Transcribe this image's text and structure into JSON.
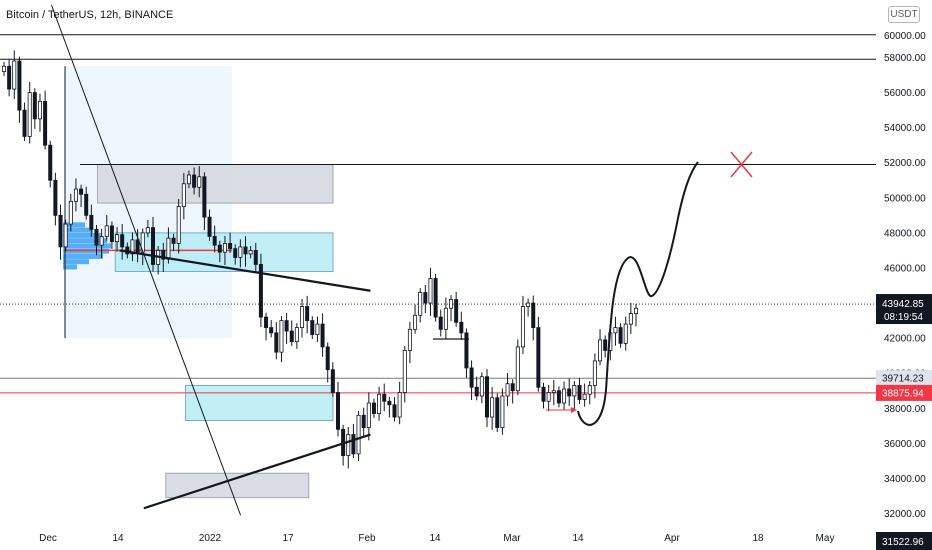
{
  "header": {
    "title": "Bitcoin / TetherUS, 12h, BINANCE",
    "currency": "USDT"
  },
  "colors": {
    "candle": "#131722",
    "grey_zone": "#d1d4dc",
    "cyan_zone": "#b2ebf2",
    "cyan_border": "#5b9cc4",
    "red_line": "#f23645",
    "red_cross": "#f23645",
    "current_price_bg": "#131722",
    "red_tag_bg": "#f23645",
    "grey_tag_bg": "#e0e3eb",
    "volume_profile": "#2196f3"
  },
  "chart_data": {
    "type": "candlestick",
    "title": "",
    "ylim": [
      31522.96,
      61000
    ],
    "price_scale_labels": [
      "58000.00",
      "56000.00",
      "54000.00",
      "52000.00",
      "50000.00",
      "48000.00",
      "46000.00",
      "44000.00",
      "42000.00",
      "40000.00",
      "38000.00",
      "36000.00",
      "34000.00",
      "32000.00"
    ],
    "time_labels": [
      "Dec",
      "14",
      "2022",
      "17",
      "Feb",
      "14",
      "Mar",
      "14",
      "Apr",
      "18",
      "May"
    ],
    "top_label": "60000.00",
    "bottom_label": "31522.96",
    "price_tags": [
      {
        "value": "43942.85",
        "sub": "08:19:54",
        "kind": "current"
      },
      {
        "value": "39714.23",
        "kind": "grey"
      },
      {
        "value": "38875.94",
        "kind": "red"
      }
    ],
    "horizontal_levels": [
      59300,
      57900,
      51900,
      39714.23,
      38875.94
    ],
    "zones": [
      {
        "kind": "grey",
        "from_date": "2021-12-24",
        "to_date": "2022-04-10",
        "low": 49700,
        "high": 51900
      },
      {
        "kind": "cyan",
        "from_date": "2022-01-01",
        "to_date": "2022-04-10",
        "low": 45800,
        "high": 48000
      },
      {
        "kind": "cyan",
        "from_date": "2022-02-02",
        "to_date": "2022-04-10",
        "low": 37300,
        "high": 39300
      },
      {
        "kind": "grey",
        "from_date": "2022-01-24",
        "to_date": "2022-03-30",
        "low": 32900,
        "high": 34300
      }
    ],
    "trend_lines": [
      {
        "from": [
          "2022-01-03",
          47000
        ],
        "to": [
          "2022-04-27",
          44700
        ],
        "style": "thick"
      },
      {
        "from": [
          "2022-01-14",
          32300
        ],
        "to": [
          "2022-04-27",
          36500
        ],
        "style": "thick"
      },
      {
        "from": [
          "2021-12-03",
          61000
        ],
        "to": [
          "2022-02-27",
          31900
        ],
        "style": "thin"
      }
    ],
    "candles_close": [
      57500,
      56200,
      57800,
      55000,
      53500,
      56000,
      54500,
      55500,
      53000,
      51000,
      49000,
      47200,
      48500,
      49800,
      50500,
      50200,
      49000,
      48200,
      47300,
      47800,
      48400,
      47500,
      47900,
      47200,
      46800,
      47600,
      46900,
      48000,
      48300,
      46200,
      47000,
      46500,
      47700,
      47400,
      49500,
      50800,
      51300,
      50600,
      51200,
      48900,
      47800,
      47300,
      46900,
      47400,
      47100,
      46600,
      47200,
      46800,
      47000,
      46200,
      43200,
      42600,
      42300,
      41200,
      43000,
      42400,
      41800,
      42600,
      43800,
      43000,
      42200,
      42800,
      41500,
      40200,
      38900,
      36800,
      35300,
      36500,
      35400,
      37600,
      36900,
      38300,
      37700,
      38800,
      38400,
      38200,
      37500,
      38900,
      41300,
      42500,
      43300,
      44600,
      44000,
      45400,
      43200,
      42500,
      43700,
      44200,
      42900,
      42300,
      40300,
      39200,
      38700,
      39800,
      37500,
      38600,
      36900,
      38700,
      39400,
      39000,
      41500,
      43800,
      44000,
      42600,
      39200,
      38400,
      38900,
      39000,
      38300,
      39100,
      38700,
      39300,
      38500,
      38800,
      39300,
      40700,
      41900,
      41300,
      42300,
      42600,
      41700,
      42800,
      43400,
      43700
    ]
  }
}
